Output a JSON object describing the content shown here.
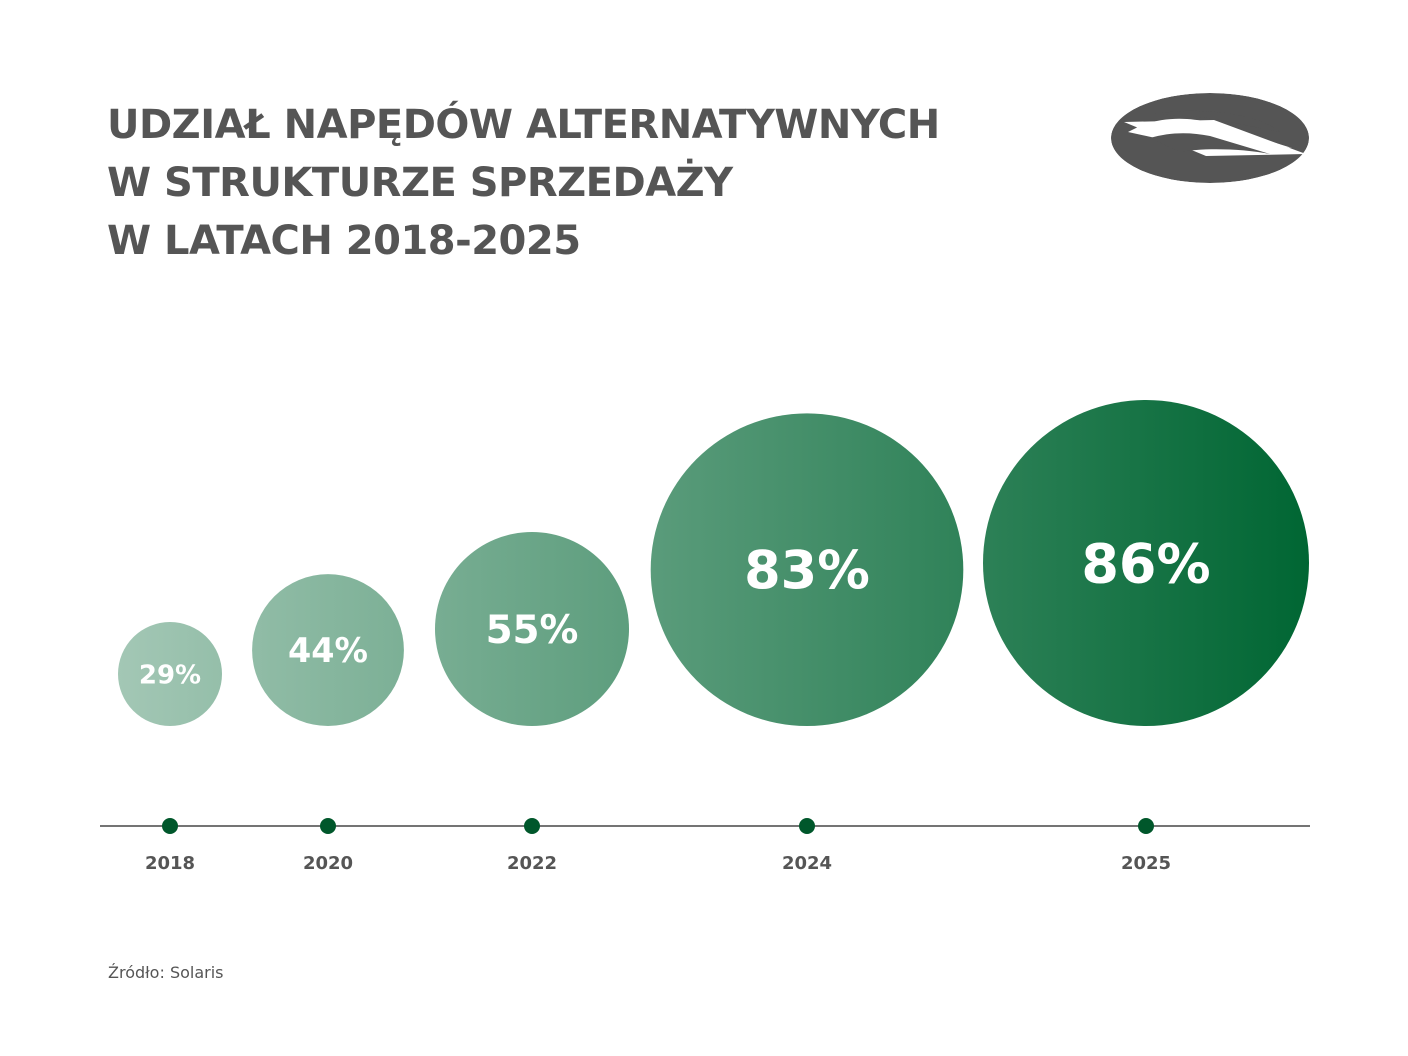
{
  "title": {
    "line1": "UDZIAŁ NAPĘDÓW ALTERNATYWNYCH",
    "line2": "W STRUKTURZE SPRZEDAŻY",
    "line3": "W LATACH 2018-2025"
  },
  "logo": {
    "icon": "solaris-logo-icon"
  },
  "source": "Źródło: Solaris",
  "colors": {
    "text": "#555555",
    "bubble_light": "#a3c7b5",
    "bubble_dark": "#006633",
    "axis_dot": "#00572b",
    "axis_line": "#222222"
  },
  "chart_data": {
    "type": "bubble",
    "categories": [
      "2018",
      "2020",
      "2022",
      "2024",
      "2025"
    ],
    "values": [
      29,
      44,
      55,
      83,
      86
    ],
    "labels": [
      "29%",
      "44%",
      "55%",
      "83%",
      "86%"
    ],
    "unit": "%",
    "title": "UDZIAŁ NAPĘDÓW ALTERNATYWNYCH W STRUKTURZE SPRZEDAŻY W LATACH 2018-2025",
    "grid": false,
    "legend": "none"
  }
}
